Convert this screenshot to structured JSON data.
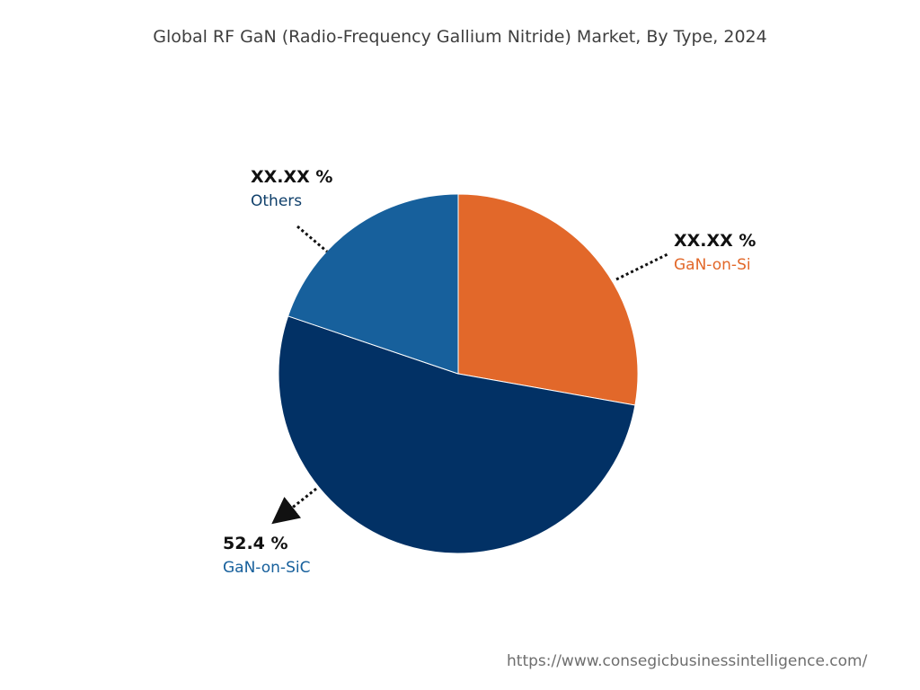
{
  "chart_data": {
    "type": "pie",
    "title": "Global RF GaN (Radio-Frequency Gallium Nitride) Market, By Type, 2024",
    "slices": [
      {
        "name": "GaN-on-Si",
        "value_label": "XX.XX %",
        "value": 27.8,
        "color": "#E2682A"
      },
      {
        "name": "GaN-on-SiC",
        "value_label": "52.4 %",
        "value": 52.4,
        "color": "#023165"
      },
      {
        "name": "Others",
        "value_label": "XX.XX %",
        "value": 19.8,
        "color": "#17609C"
      }
    ],
    "label_colors": {
      "GaN-on-Si": "#E2682A",
      "GaN-on-SiC": "#17609C",
      "Others": "#0F3F6A"
    }
  },
  "source_url": "https://www.consegicbusinessintelligence.com/"
}
